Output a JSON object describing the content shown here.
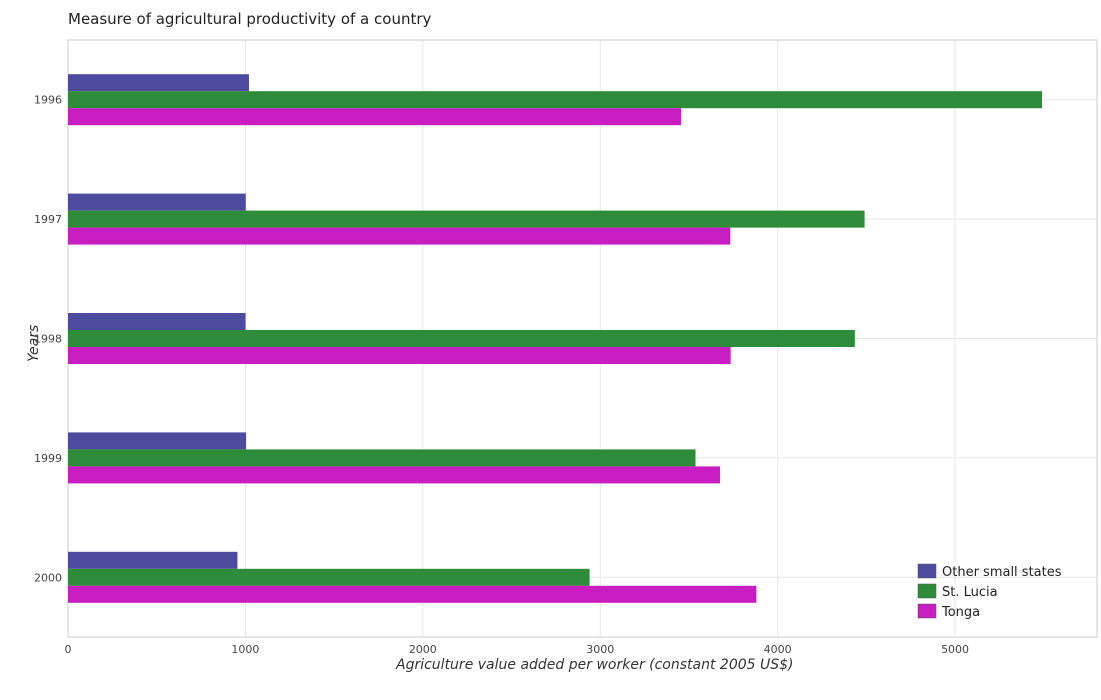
{
  "chart_data": {
    "type": "bar",
    "orientation": "horizontal",
    "title": "Measure of agricultural productivity of a country",
    "xlabel": "Agriculture value added per worker (constant 2005 US$)",
    "ylabel": "Years",
    "categories": [
      "1996",
      "1997",
      "1998",
      "1999",
      "2000"
    ],
    "xlim": [
      0,
      5800
    ],
    "xticks": [
      0,
      1000,
      2000,
      3000,
      4000,
      5000
    ],
    "grid": true,
    "legend_position": "bottom-right",
    "series": [
      {
        "name": "Other small states",
        "color": "#4c4b9e",
        "values": [
          1020,
          1002,
          1001,
          1004,
          955
        ]
      },
      {
        "name": "St. Lucia",
        "color": "#2e8b3a",
        "values": [
          5490,
          4490,
          4435,
          3537,
          2940
        ]
      },
      {
        "name": "Tonga",
        "color": "#c81ec1",
        "values": [
          3455,
          3733,
          3735,
          3675,
          3880
        ]
      }
    ]
  }
}
